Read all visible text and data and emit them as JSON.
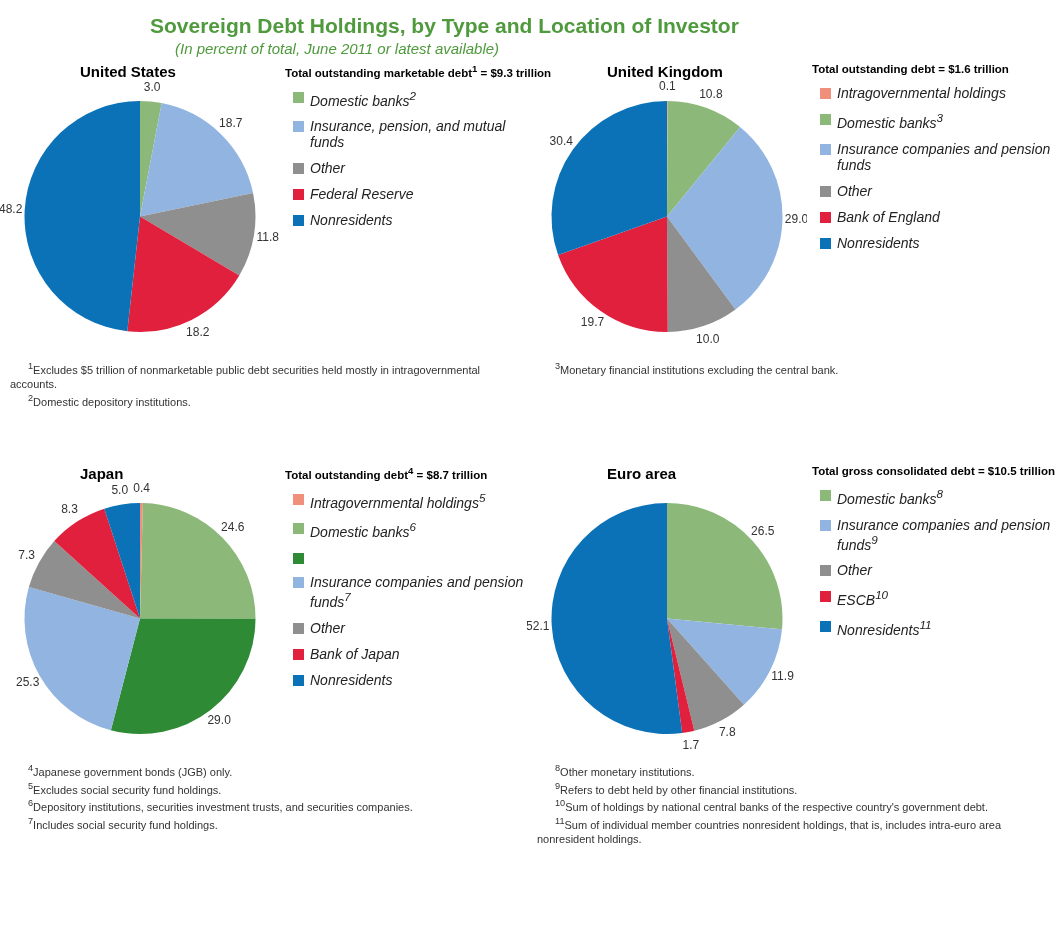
{
  "chart_data": [
    {
      "type": "other",
      "title": "Sovereign Debt Holdings, by Type and Location of Investor",
      "subtitle": "(In percent of total, June 2011 or latest available)"
    },
    {
      "type": "pie",
      "title": "United States",
      "legend_title": "Total  outstanding marketable debt$^{1}$ = $9.3 trillion",
      "legend": "right",
      "value_labels": [
        "3.0",
        "18.7",
        "11.8",
        "18.2",
        "48.2"
      ],
      "categories": [
        "Domestic banks$^{2}$",
        "Insurance, pension, and mutual funds",
        "Other",
        "Federal Reserve",
        "Nonresidents"
      ],
      "values": [
        3.0,
        18.7,
        11.8,
        18.2,
        48.2
      ],
      "colors": [
        "#8cb87a",
        "#92b4e0",
        "#8f8f8f",
        "#e0203c",
        "#0b72b8"
      ],
      "annotations": [
        "$^{1}$Excludes $5 trillion of nonmarketable public debt securities held mostly in intragovernmental accounts.",
        "$^{2}$Domestic depository institutions."
      ]
    },
    {
      "type": "pie",
      "title": "United Kingdom",
      "legend_title": "Total outstanding debt = $1.6 trillion",
      "legend": "right",
      "value_labels": [
        "0.1",
        "10.8",
        "29.0",
        "10.0",
        "19.7",
        "30.4"
      ],
      "categories": [
        "Intragovernmental holdings",
        "Domestic banks$^{3}$",
        "Insurance companies and pension funds",
        "Other",
        "Bank of England",
        "Nonresidents"
      ],
      "values": [
        0.1,
        10.8,
        29.0,
        10.0,
        19.7,
        30.4
      ],
      "colors": [
        "#f0907c",
        "#8cb87a",
        "#92b4e0",
        "#8f8f8f",
        "#e0203c",
        "#0b72b8"
      ],
      "annotations": [
        "$^{3}$Monetary financial institutions excluding the central bank."
      ]
    },
    {
      "type": "pie",
      "title": "Japan",
      "legend_title": "Total outstanding debt$^{4}$ = $8.7 trillion",
      "legend": "right",
      "value_labels": [
        "0.4",
        "24.6",
        "29.0",
        "25.3",
        "7.3",
        "8.3",
        "5.0"
      ],
      "categories": [
        "Intragovernmental holdings$^{5}$",
        "Domestic banks$^{6}$",
        null,
        "Insurance companies and pension funds$^{7}$",
        "Other",
        "Bank of Japan",
        "Nonresidents"
      ],
      "values": [
        0.4,
        24.6,
        29.0,
        25.3,
        7.3,
        8.3,
        5.0
      ],
      "colors": [
        "#f0907c",
        "#8cb87a",
        "#2e8a34",
        "#92b4e0",
        "#8f8f8f",
        "#e0203c",
        "#0b72b8"
      ],
      "annotations": [
        "$^{4}$Japanese government bonds (JGB) only.",
        "$^{5}$Excludes social security fund holdings.",
        "$^{6}$Depository institutions, securities investment trusts, and securities companies.",
        "$^{7}$Includes social security fund holdings."
      ]
    },
    {
      "type": "pie",
      "title": "Euro area",
      "legend_title": "Total gross consolidated debt = $10.5 trillion",
      "legend": "right",
      "value_labels": [
        "26.5",
        "11.9",
        "7.8",
        "1.7",
        "52.1"
      ],
      "categories": [
        "Domestic banks$^{8}$",
        "Insurance companies and pension funds$^{9}$",
        "Other",
        "ESCB$^{10}$",
        "Nonresidents$^{11}$"
      ],
      "values": [
        26.5,
        11.9,
        7.8,
        1.7,
        52.1
      ],
      "colors": [
        "#8cb87a",
        "#92b4e0",
        "#8f8f8f",
        "#e0203c",
        "#0b72b8"
      ],
      "annotations": [
        "$^{8}$Other monetary institutions.",
        "$^{9}$Refers to debt held by other financial institutions.",
        "$^{10}$Sum of holdings by national central banks of the respective country's government debt.",
        "$^{11}$Sum of individual member countries nonresident holdings, that is, includes intra-euro area nonresident holdings."
      ]
    }
  ]
}
